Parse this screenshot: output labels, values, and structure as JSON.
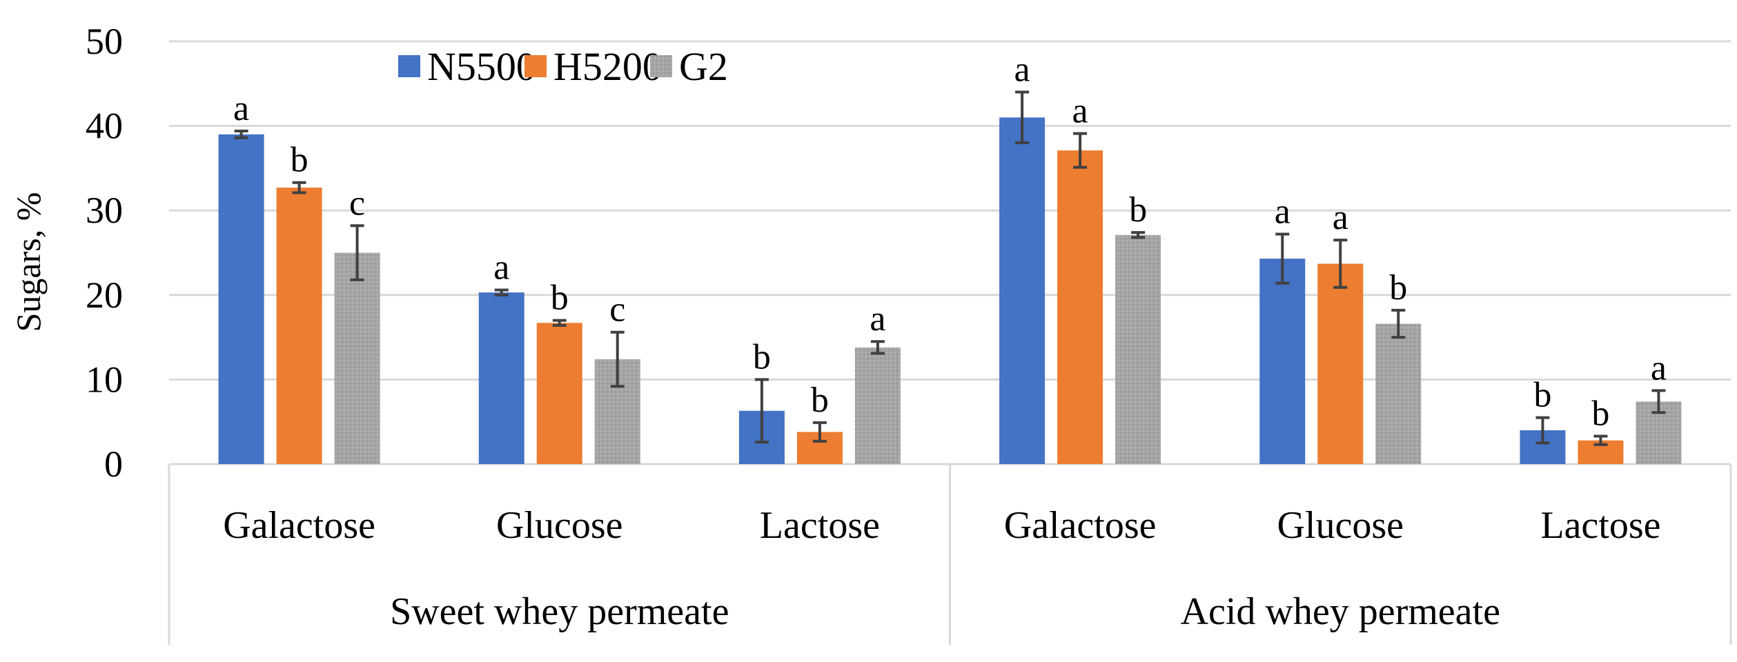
{
  "chart_data": {
    "type": "bar",
    "title": "",
    "ylabel": "Sugars, %",
    "xlabel": "",
    "ylim": [
      0,
      50
    ],
    "yticks": [
      0,
      10,
      20,
      30,
      40,
      50
    ],
    "grid": true,
    "legend_position": "top",
    "groups": [
      "Sweet whey permeate",
      "Acid whey permeate"
    ],
    "categories": [
      {
        "group": "Sweet whey permeate",
        "label": "Galactose"
      },
      {
        "group": "Sweet whey permeate",
        "label": "Glucose"
      },
      {
        "group": "Sweet whey permeate",
        "label": "Lactose"
      },
      {
        "group": "Acid whey permeate",
        "label": "Galactose"
      },
      {
        "group": "Acid whey permeate",
        "label": "Glucose"
      },
      {
        "group": "Acid whey permeate",
        "label": "Lactose"
      }
    ],
    "series": [
      {
        "name": "N5500",
        "color": "#4472c4",
        "values": [
          39.0,
          20.3,
          6.3,
          41.0,
          24.3,
          4.0
        ],
        "errors": [
          0.4,
          0.3,
          3.7,
          3.0,
          2.9,
          1.5
        ],
        "labels": [
          "a",
          "a",
          "b",
          "a",
          "a",
          "b"
        ]
      },
      {
        "name": "H5200",
        "color": "#ed7d31",
        "values": [
          32.7,
          16.7,
          3.8,
          37.1,
          23.7,
          2.8
        ],
        "errors": [
          0.6,
          0.3,
          1.1,
          2.0,
          2.8,
          0.5
        ],
        "labels": [
          "b",
          "b",
          "b",
          "a",
          "a",
          "b"
        ]
      },
      {
        "name": "G2",
        "color": "#a5a5a5",
        "values": [
          25.0,
          12.4,
          13.8,
          27.1,
          16.6,
          7.4
        ],
        "errors": [
          3.2,
          3.2,
          0.7,
          0.3,
          1.6,
          1.3
        ],
        "labels": [
          "c",
          "c",
          "a",
          "b",
          "b",
          "a"
        ]
      }
    ]
  }
}
